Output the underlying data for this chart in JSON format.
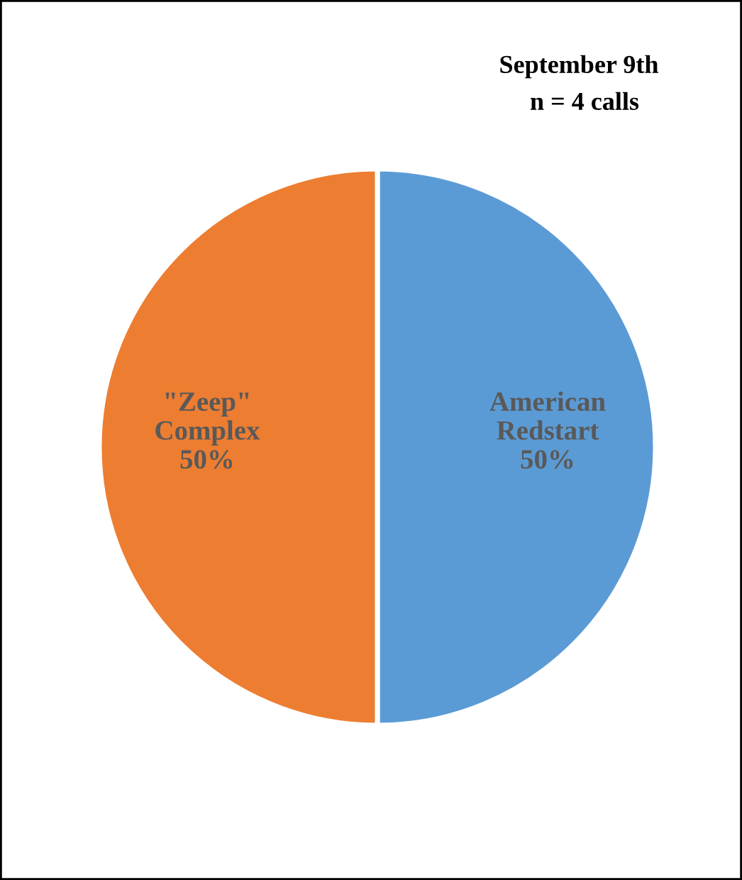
{
  "chart_data": {
    "type": "pie",
    "title": "September 9th",
    "subtitle": "n = 4 calls",
    "categories": [
      "American\nRedstart",
      "\"Zeep\"\nComplex"
    ],
    "values": [
      50,
      50
    ],
    "colors": [
      "#5b9bd5",
      "#ed7d31"
    ],
    "value_labels": [
      "50%",
      "50%"
    ],
    "legend": false
  }
}
